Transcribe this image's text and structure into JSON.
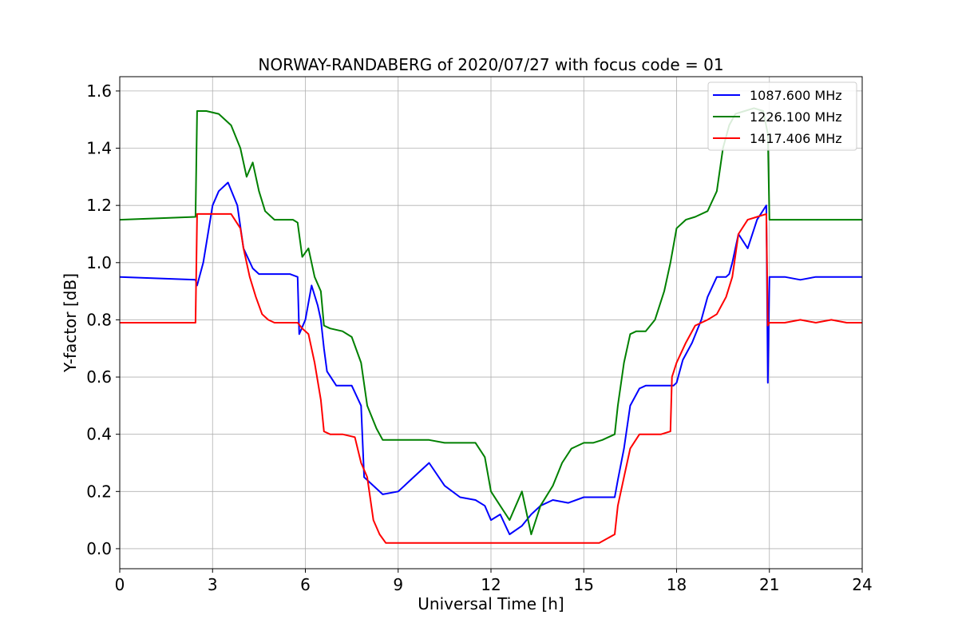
{
  "chart_data": {
    "type": "line",
    "title": "NORWAY-RANDABERG of 2020/07/27 with focus code = 01",
    "xlabel": "Universal Time [h]",
    "ylabel": "Y-factor [dB]",
    "xlim": [
      0,
      24
    ],
    "ylim": [
      -0.07,
      1.65
    ],
    "xticks": [
      0,
      3,
      6,
      9,
      12,
      15,
      18,
      21,
      24
    ],
    "yticks": [
      0.0,
      0.2,
      0.4,
      0.6,
      0.8,
      1.0,
      1.2,
      1.4,
      1.6
    ],
    "xtick_labels": [
      "0",
      "3",
      "6",
      "9",
      "12",
      "15",
      "18",
      "21",
      "24"
    ],
    "ytick_labels": [
      "0.0",
      "0.2",
      "0.4",
      "0.6",
      "0.8",
      "1.0",
      "1.2",
      "1.4",
      "1.6"
    ],
    "grid": true,
    "legend_position": "top-right",
    "series": [
      {
        "name": "1087.600 MHz",
        "color": "#0000ff",
        "x": [
          0,
          2.45,
          2.5,
          2.7,
          3.0,
          3.2,
          3.5,
          3.8,
          4.0,
          4.3,
          4.5,
          4.8,
          5.0,
          5.5,
          5.75,
          5.8,
          6.0,
          6.2,
          6.4,
          6.5,
          6.6,
          6.7,
          7.0,
          7.5,
          7.8,
          7.9,
          8.2,
          8.5,
          9.0,
          9.5,
          10.0,
          10.5,
          11.0,
          11.5,
          11.8,
          12.0,
          12.3,
          12.6,
          13.0,
          13.3,
          13.6,
          14.0,
          14.5,
          15.0,
          15.5,
          16.0,
          16.1,
          16.3,
          16.5,
          16.8,
          17.0,
          17.5,
          17.9,
          18.0,
          18.2,
          18.5,
          18.8,
          19.0,
          19.3,
          19.6,
          19.7,
          19.8,
          20.0,
          20.3,
          20.6,
          20.9,
          20.95,
          21.0,
          21.5,
          22.0,
          22.5,
          23.0,
          23.5,
          24.0
        ],
        "y": [
          0.95,
          0.94,
          0.92,
          1.0,
          1.2,
          1.25,
          1.28,
          1.2,
          1.05,
          0.98,
          0.96,
          0.96,
          0.96,
          0.96,
          0.95,
          0.75,
          0.8,
          0.92,
          0.85,
          0.8,
          0.7,
          0.62,
          0.57,
          0.57,
          0.5,
          0.25,
          0.22,
          0.19,
          0.2,
          0.25,
          0.3,
          0.22,
          0.18,
          0.17,
          0.15,
          0.1,
          0.12,
          0.05,
          0.08,
          0.12,
          0.15,
          0.17,
          0.16,
          0.18,
          0.18,
          0.18,
          0.24,
          0.35,
          0.5,
          0.56,
          0.57,
          0.57,
          0.57,
          0.58,
          0.66,
          0.72,
          0.8,
          0.88,
          0.95,
          0.95,
          0.96,
          1.0,
          1.1,
          1.05,
          1.15,
          1.2,
          0.58,
          0.95,
          0.95,
          0.94,
          0.95,
          0.95,
          0.95,
          0.95
        ]
      },
      {
        "name": "1226.100 MHz",
        "color": "#008000",
        "x": [
          0,
          2.45,
          2.5,
          2.8,
          3.2,
          3.6,
          3.9,
          4.1,
          4.3,
          4.5,
          4.7,
          5.0,
          5.3,
          5.6,
          5.75,
          5.9,
          6.1,
          6.3,
          6.5,
          6.6,
          6.8,
          7.2,
          7.5,
          7.8,
          8.0,
          8.3,
          8.5,
          9.0,
          9.5,
          10.0,
          10.5,
          11.0,
          11.5,
          11.8,
          12.0,
          12.3,
          12.6,
          13.0,
          13.3,
          13.6,
          14.0,
          14.3,
          14.6,
          15.0,
          15.3,
          15.6,
          16.0,
          16.1,
          16.3,
          16.5,
          16.7,
          17.0,
          17.3,
          17.6,
          17.8,
          18.0,
          18.3,
          18.6,
          19.0,
          19.3,
          19.5,
          19.7,
          19.9,
          20.2,
          20.5,
          20.8,
          20.95,
          21.0,
          21.5,
          22.0,
          22.5,
          23.0,
          23.5,
          24.0
        ],
        "y": [
          1.15,
          1.16,
          1.53,
          1.53,
          1.52,
          1.48,
          1.4,
          1.3,
          1.35,
          1.25,
          1.18,
          1.15,
          1.15,
          1.15,
          1.14,
          1.02,
          1.05,
          0.95,
          0.9,
          0.78,
          0.77,
          0.76,
          0.74,
          0.65,
          0.5,
          0.42,
          0.38,
          0.38,
          0.38,
          0.38,
          0.37,
          0.37,
          0.37,
          0.32,
          0.2,
          0.15,
          0.1,
          0.2,
          0.05,
          0.15,
          0.22,
          0.3,
          0.35,
          0.37,
          0.37,
          0.38,
          0.4,
          0.5,
          0.65,
          0.75,
          0.76,
          0.76,
          0.8,
          0.9,
          1.0,
          1.12,
          1.15,
          1.16,
          1.18,
          1.25,
          1.4,
          1.48,
          1.52,
          1.53,
          1.54,
          1.53,
          1.45,
          1.15,
          1.15,
          1.15,
          1.15,
          1.15,
          1.15,
          1.15
        ]
      },
      {
        "name": "1417.406 MHz",
        "color": "#ff0000",
        "x": [
          0,
          2.45,
          2.5,
          2.8,
          3.2,
          3.6,
          3.9,
          4.0,
          4.2,
          4.4,
          4.6,
          4.8,
          5.0,
          5.5,
          5.75,
          5.9,
          6.1,
          6.3,
          6.5,
          6.6,
          6.8,
          7.2,
          7.6,
          7.8,
          8.0,
          8.2,
          8.4,
          8.6,
          9.0,
          9.5,
          10.0,
          10.5,
          11.0,
          11.5,
          12.0,
          12.5,
          13.0,
          13.5,
          14.0,
          14.5,
          15.0,
          15.5,
          16.0,
          16.1,
          16.3,
          16.5,
          16.8,
          17.0,
          17.5,
          17.8,
          17.85,
          18.0,
          18.3,
          18.6,
          19.0,
          19.3,
          19.6,
          19.8,
          20.0,
          20.3,
          20.6,
          20.9,
          20.95,
          21.0,
          21.5,
          22.0,
          22.5,
          23.0,
          23.5,
          24.0
        ],
        "y": [
          0.79,
          0.79,
          1.17,
          1.17,
          1.17,
          1.17,
          1.12,
          1.05,
          0.95,
          0.88,
          0.82,
          0.8,
          0.79,
          0.79,
          0.79,
          0.77,
          0.75,
          0.65,
          0.52,
          0.41,
          0.4,
          0.4,
          0.39,
          0.3,
          0.25,
          0.1,
          0.05,
          0.02,
          0.02,
          0.02,
          0.02,
          0.02,
          0.02,
          0.02,
          0.02,
          0.02,
          0.02,
          0.02,
          0.02,
          0.02,
          0.02,
          0.02,
          0.05,
          0.15,
          0.25,
          0.35,
          0.4,
          0.4,
          0.4,
          0.41,
          0.6,
          0.65,
          0.72,
          0.78,
          0.8,
          0.82,
          0.88,
          0.95,
          1.1,
          1.15,
          1.16,
          1.17,
          0.78,
          0.79,
          0.79,
          0.8,
          0.79,
          0.8,
          0.79,
          0.79
        ]
      }
    ]
  }
}
